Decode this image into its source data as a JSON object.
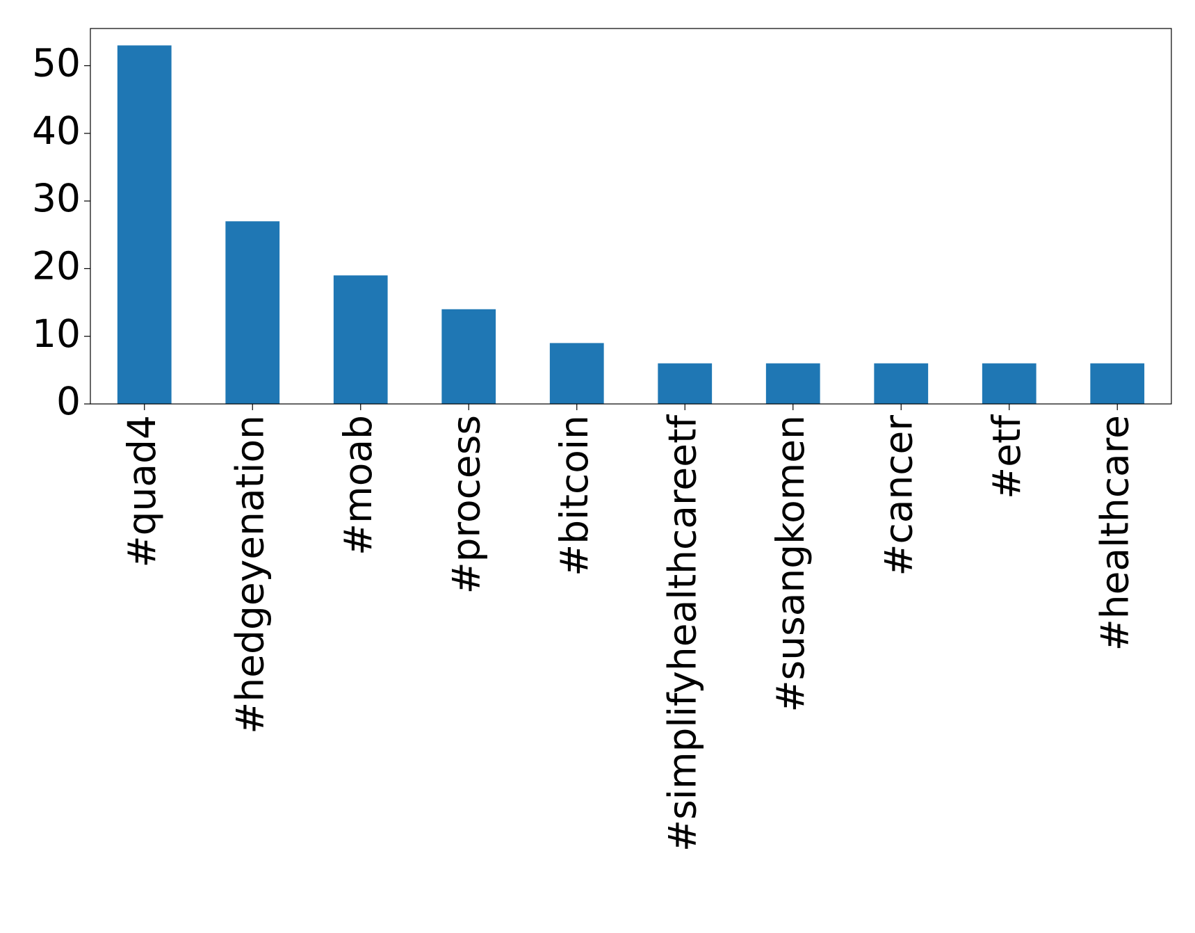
{
  "chart_data": {
    "type": "bar",
    "categories": [
      "#quad4",
      "#hedgeyenation",
      "#moab",
      "#process",
      "#bitcoin",
      "#simplifyhealthcareetf",
      "#susangkomen",
      "#cancer",
      "#etf",
      "#healthcare"
    ],
    "values": [
      53,
      27,
      19,
      14,
      9,
      6,
      6,
      6,
      6,
      6
    ],
    "color": "#1f77b4",
    "ylim": [
      0,
      55.5
    ],
    "yticks": [
      0,
      10,
      20,
      30,
      40,
      50
    ],
    "grid": false
  }
}
